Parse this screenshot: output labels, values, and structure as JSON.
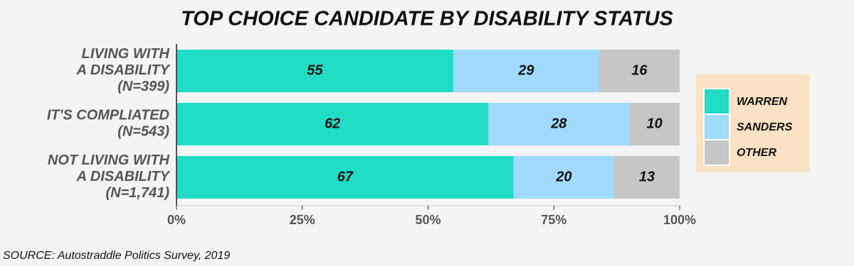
{
  "chart_data": {
    "type": "stacked_barh",
    "title": "TOP CHOICE CANDIDATE BY DISABILITY STATUS",
    "source": "SOURCE: Autostraddle Politics Survey, 2019",
    "categories": [
      "LIVING WITH\nA DISABILITY\n(N=399)",
      "IT'S COMPLIATED\n(N=543)",
      "NOT LIVING WITH\nA DISABILITY\n(N=1,741)"
    ],
    "series": [
      {
        "name": "WARREN",
        "color": "#20dcc6",
        "values": [
          55,
          62,
          67
        ]
      },
      {
        "name": "SANDERS",
        "color": "#a0dafc",
        "values": [
          29,
          28,
          20
        ]
      },
      {
        "name": "OTHER",
        "color": "#c6c6c6",
        "values": [
          16,
          10,
          13
        ]
      }
    ],
    "xlim": [
      0,
      100
    ],
    "xticks": [
      {
        "value": 0,
        "label": "0%"
      },
      {
        "value": 25,
        "label": "25%"
      },
      {
        "value": 50,
        "label": "50%"
      },
      {
        "value": 75,
        "label": "75%"
      },
      {
        "value": 100,
        "label": "100%"
      }
    ],
    "grid": false,
    "legend": "right"
  }
}
